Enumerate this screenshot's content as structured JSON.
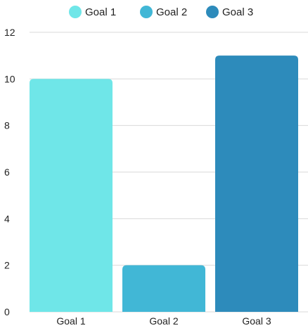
{
  "chart_data": {
    "type": "bar",
    "title": "",
    "xlabel": "",
    "ylabel": "",
    "categories": [
      "Goal 1",
      "Goal 2",
      "Goal 3"
    ],
    "values": [
      10,
      2,
      11
    ],
    "ylim": [
      0,
      12
    ],
    "yticks": [
      "0",
      "2",
      "4",
      "6",
      "8",
      "10",
      "12"
    ],
    "grid": true,
    "legend": {
      "position": "top",
      "entries": [
        "Goal 1",
        "Goal 2",
        "Goal 3"
      ]
    },
    "colors": [
      "#6fe6e8",
      "#41b7d6",
      "#2d8bbb"
    ]
  }
}
